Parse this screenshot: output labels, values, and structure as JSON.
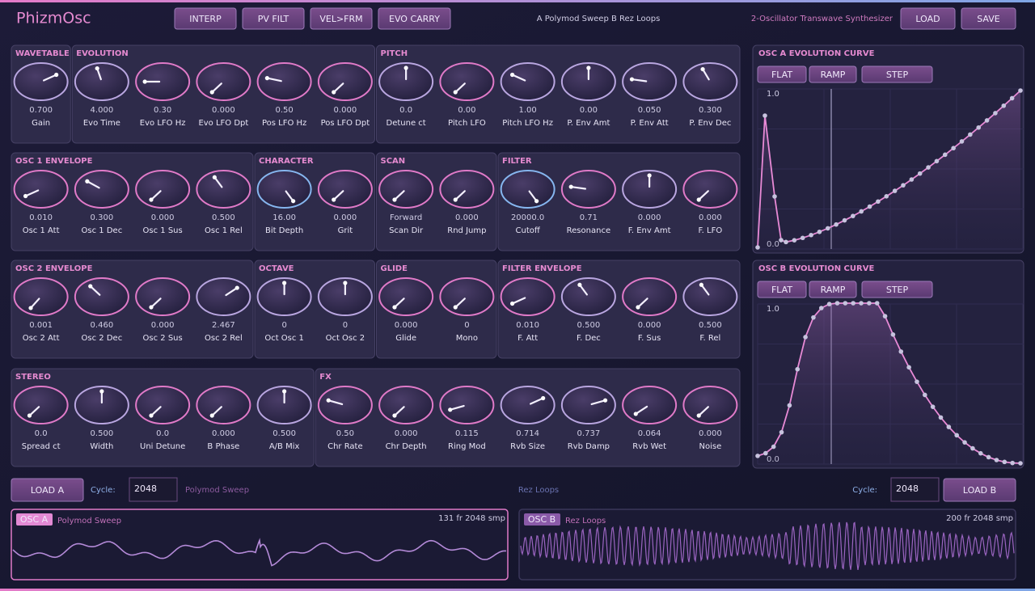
{
  "header": {
    "title": "PhizmOsc",
    "modes": [
      "INTERP",
      "PV FILT",
      "VEL>FRM",
      "EVO CARRY"
    ],
    "preset": "A Polymod Sweep B Rez Loops",
    "subtitle": "2-Oscillator Transwave Synthesizer",
    "actions": [
      "LOAD",
      "SAVE"
    ]
  },
  "rows": [
    [
      {
        "title": "WAVETABLE",
        "knobs": [
          {
            "value": "0.700",
            "label": "Gain"
          }
        ]
      },
      {
        "title": "EVOLUTION",
        "knobs": [
          {
            "value": "4.000",
            "label": "Evo Time"
          },
          {
            "value": "0.30",
            "label": "Evo LFO Hz"
          },
          {
            "value": "0.000",
            "label": "Evo LFO Dpt"
          },
          {
            "value": "0.50",
            "label": "Pos LFO Hz"
          },
          {
            "value": "0.000",
            "label": "Pos LFO Dpt"
          }
        ]
      },
      {
        "title": "PITCH",
        "knobs": [
          {
            "value": "0.0",
            "label": "Detune ct"
          },
          {
            "value": "0.00",
            "label": "Pitch LFO"
          },
          {
            "value": "1.00",
            "label": "Pitch LFO Hz"
          },
          {
            "value": "0.00",
            "label": "P. Env Amt"
          },
          {
            "value": "0.050",
            "label": "P. Env Att"
          },
          {
            "value": "0.300",
            "label": "P. Env Dec"
          }
        ]
      }
    ],
    [
      {
        "title": "OSC 1 ENVELOPE",
        "knobs": [
          {
            "value": "0.010",
            "label": "Osc 1 Att"
          },
          {
            "value": "0.300",
            "label": "Osc 1 Dec"
          },
          {
            "value": "0.000",
            "label": "Osc 1 Sus"
          },
          {
            "value": "0.500",
            "label": "Osc 1 Rel"
          }
        ]
      },
      {
        "title": "CHARACTER",
        "knobs": [
          {
            "value": "16.00",
            "label": "Bit Depth"
          },
          {
            "value": "0.000",
            "label": "Grit"
          }
        ]
      },
      {
        "title": "SCAN",
        "knobs": [
          {
            "value": "Forward",
            "label": "Scan Dir"
          },
          {
            "value": "0.000",
            "label": "Rnd Jump"
          }
        ]
      },
      {
        "title": "FILTER",
        "knobs": [
          {
            "value": "20000.0",
            "label": "Cutoff"
          },
          {
            "value": "0.71",
            "label": "Resonance"
          },
          {
            "value": "0.000",
            "label": "F. Env Amt"
          },
          {
            "value": "0.000",
            "label": "F. LFO"
          }
        ]
      }
    ],
    [
      {
        "title": "OSC 2 ENVELOPE",
        "knobs": [
          {
            "value": "0.001",
            "label": "Osc 2 Att"
          },
          {
            "value": "0.460",
            "label": "Osc 2 Dec"
          },
          {
            "value": "0.000",
            "label": "Osc 2 Sus"
          },
          {
            "value": "2.467",
            "label": "Osc 2 Rel"
          }
        ]
      },
      {
        "title": "OCTAVE",
        "knobs": [
          {
            "value": "0",
            "label": "Oct Osc 1"
          },
          {
            "value": "0",
            "label": "Oct Osc 2"
          }
        ]
      },
      {
        "title": "GLIDE",
        "knobs": [
          {
            "value": "0.000",
            "label": "Glide"
          },
          {
            "value": "0",
            "label": "Mono"
          }
        ]
      },
      {
        "title": "FILTER ENVELOPE",
        "knobs": [
          {
            "value": "0.010",
            "label": "F. Att"
          },
          {
            "value": "0.500",
            "label": "F. Dec"
          },
          {
            "value": "0.000",
            "label": "F. Sus"
          },
          {
            "value": "0.500",
            "label": "F. Rel"
          }
        ]
      }
    ],
    [
      {
        "title": "STEREO",
        "knobs": [
          {
            "value": "0.0",
            "label": "Spread ct"
          },
          {
            "value": "0.500",
            "label": "Width"
          },
          {
            "value": "0.0",
            "label": "Uni Detune"
          },
          {
            "value": "0.000",
            "label": "B Phase"
          },
          {
            "value": "0.500",
            "label": "A/B Mix"
          }
        ]
      },
      {
        "title": "FX",
        "knobs": [
          {
            "value": "0.50",
            "label": "Chr Rate"
          },
          {
            "value": "0.000",
            "label": "Chr Depth"
          },
          {
            "value": "0.115",
            "label": "Ring Mod"
          },
          {
            "value": "0.714",
            "label": "Rvb Size"
          },
          {
            "value": "0.737",
            "label": "Rvb Damp"
          },
          {
            "value": "0.064",
            "label": "Rvb Wet"
          },
          {
            "value": "0.000",
            "label": "Noise"
          }
        ]
      }
    ]
  ],
  "curves": [
    {
      "title": "OSC A EVOLUTION CURVE",
      "buttons": [
        "FLAT",
        "RAMP",
        "STEP"
      ],
      "top": "1.0",
      "bottom": "0.0"
    },
    {
      "title": "OSC B EVOLUTION CURVE",
      "buttons": [
        "FLAT",
        "RAMP",
        "STEP"
      ],
      "top": "1.0",
      "bottom": "0.0"
    }
  ],
  "footer": {
    "load_a": "LOAD A",
    "cycle_a_label": "Cycle:",
    "cycle_a": "2048",
    "name_a": "Polymod Sweep",
    "name_b": "Rez Loops",
    "cycle_b_label": "Cycle:",
    "cycle_b": "2048",
    "load_b": "LOAD B"
  },
  "waves": [
    {
      "tag": "OSC A",
      "name": "Polymod Sweep",
      "frames": "131 fr",
      "samples": "2048 smp"
    },
    {
      "tag": "OSC B",
      "name": "Rez Loops",
      "frames": "200 fr",
      "samples": "2048 smp"
    }
  ]
}
